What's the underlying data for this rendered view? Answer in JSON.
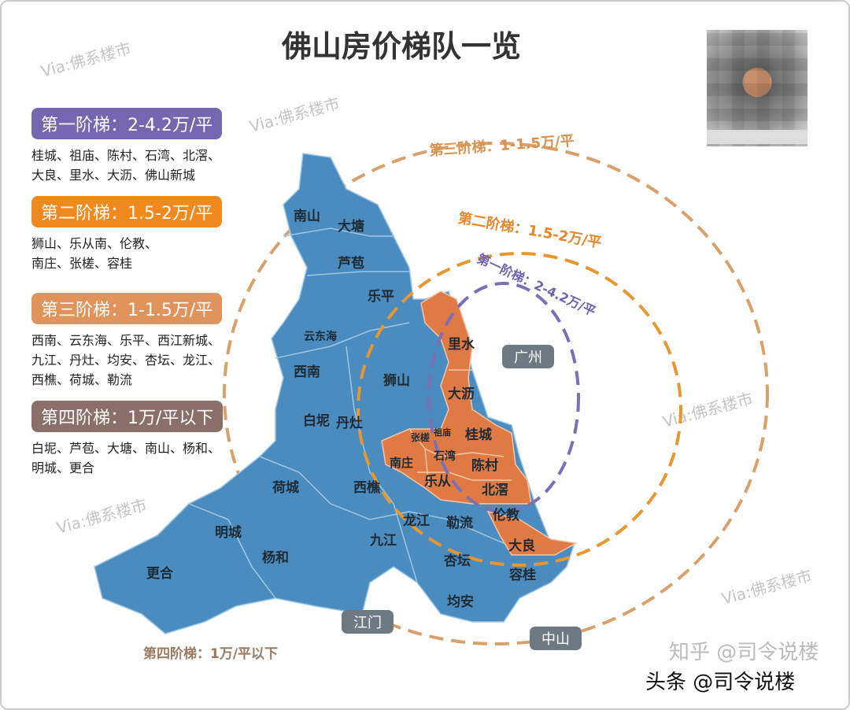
{
  "title": "佛山房价梯队一览",
  "watermark": "Via:佛系楼市",
  "credit_back": "知乎 @司令说楼",
  "credit_front": "头条 @司令说楼",
  "colors": {
    "tier1": "#7566b0",
    "tier2": "#f0891e",
    "tier3": "#e0935a",
    "tier4": "#8a7068",
    "map_blue": "#4a8cbf",
    "map_orange": "#e07a44",
    "neighbor": "#6d7a82"
  },
  "legend": [
    {
      "label": "第一阶梯：2-4.2万/平",
      "areas": [
        "桂城、祖庙、陈村、石湾、北滘、",
        "大良、里水、大沥、佛山新城"
      ]
    },
    {
      "label": "第二阶梯：1.5-2万/平",
      "areas": [
        "狮山、乐从南、伦教、",
        "南庄、张槎、容桂"
      ]
    },
    {
      "label": "第三阶梯：1-1.5万/平",
      "areas": [
        "西南、云东海、乐平、西江新城、",
        "九江、丹灶、均安、杏坛、龙江、",
        "西樵、荷城、勒流"
      ]
    },
    {
      "label": "第四阶梯：1万/平以下",
      "areas": [
        "白坭、芦苞、大塘、南山、杨和、",
        "明城、更合"
      ]
    }
  ],
  "rings": {
    "tier1": "第一阶梯：2-4.2万/平",
    "tier2": "第二阶梯：1.5-2万/平",
    "tier3": "第三阶梯：1-1.5万/平",
    "tier4": "第四阶梯：1万/平以下"
  },
  "neighbors": {
    "guangzhou": "广州",
    "jiangmen": "江门",
    "zhongshan": "中山"
  },
  "districts": {
    "nanshan": "南山",
    "datang": "大塘",
    "lubao": "芦苞",
    "leping": "乐平",
    "yundonghai": "云东海",
    "xinan": "西南",
    "shishan": "狮山",
    "baini": "白坭",
    "dancao": "丹灶",
    "hecheng": "荷城",
    "xiqiao": "西樵",
    "mingcheng": "明城",
    "yanghe": "杨和",
    "genghe": "更合",
    "jiujiang": "九江",
    "longjiang": "龙江",
    "leliu": "勒流",
    "xingtan": "杏坛",
    "junan": "均安",
    "ronggui": "容桂",
    "lishui": "里水",
    "dali": "大沥",
    "guicheng": "桂城",
    "zhangcha": "张槎",
    "zumiao": "祖庙",
    "nanzhuang": "南庄",
    "shiwan": "石湾",
    "chencun": "陈村",
    "lecong": "乐从",
    "beijiao": "北滘",
    "lunjiao": "伦教",
    "daliang": "大良"
  }
}
